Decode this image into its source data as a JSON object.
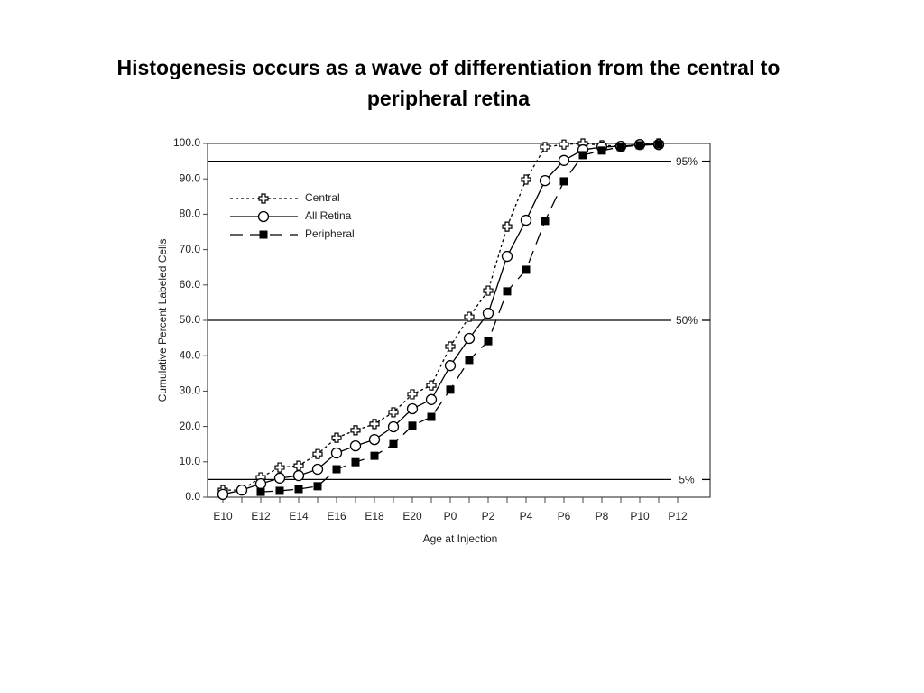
{
  "chart_data": {
    "type": "line",
    "title": "Histogenesis occurs as a wave of differentiation from the central to peripheral retina",
    "xlabel": "Age at Injection",
    "ylabel": "Cumulative Percent Labeled Cells",
    "categories": [
      "E10",
      null,
      "E12",
      null,
      "E14",
      null,
      "E16",
      null,
      "E18",
      null,
      "E20",
      null,
      "P0",
      null,
      "P2",
      null,
      "P4",
      null,
      "P6",
      null,
      "P8",
      null,
      "P10",
      null,
      "P12"
    ],
    "ylim": [
      0,
      100
    ],
    "yticks": [
      {
        "value": 0,
        "label": "0.0"
      },
      {
        "value": 10,
        "label": "10.0"
      },
      {
        "value": 20,
        "label": "20.0"
      },
      {
        "value": 30,
        "label": "30.0"
      },
      {
        "value": 40,
        "label": "40.0"
      },
      {
        "value": 50,
        "label": "50.0"
      },
      {
        "value": 60,
        "label": "60.0"
      },
      {
        "value": 70,
        "label": "70.0"
      },
      {
        "value": 80,
        "label": "80.0"
      },
      {
        "value": 90,
        "label": "90.0"
      },
      {
        "value": 100,
        "label": "100.0"
      }
    ],
    "reference_lines": [
      {
        "value": 95,
        "label": "95%"
      },
      {
        "value": 50,
        "label": "50%"
      },
      {
        "value": 5,
        "label": "5%"
      }
    ],
    "legend": "upper left",
    "series": [
      {
        "name": "Central",
        "color": "#000000",
        "line": "dotted",
        "marker": "cross",
        "values": [
          2,
          2,
          5.6,
          8.4,
          8.9,
          12.2,
          16.8,
          18.9,
          20.7,
          24,
          29.1,
          31.6,
          42.6,
          51,
          58.4,
          76.5,
          89.8,
          99,
          99.7,
          100,
          99.5,
          99.2,
          99.7,
          100,
          null
        ]
      },
      {
        "name": "All Retina",
        "color": "#000000",
        "line": "solid",
        "marker": "circle",
        "values": [
          0.8,
          2,
          3.8,
          5.4,
          6.1,
          7.9,
          12.5,
          14.5,
          16.3,
          19.9,
          25,
          27.6,
          37.2,
          44.9,
          52,
          68.1,
          78.3,
          89.5,
          95.2,
          98.2,
          99,
          99.2,
          99.7,
          99.7,
          null
        ]
      },
      {
        "name": "Peripheral",
        "color": "#000000",
        "line": "dashed",
        "marker": "square",
        "values": [
          null,
          null,
          1.5,
          1.8,
          2.3,
          3.1,
          7.9,
          9.9,
          11.7,
          15,
          20.2,
          22.7,
          30.4,
          38.8,
          44.1,
          58.2,
          64.3,
          78.1,
          89.3,
          96.7,
          98,
          99,
          99.5,
          99.7,
          null
        ]
      }
    ]
  }
}
